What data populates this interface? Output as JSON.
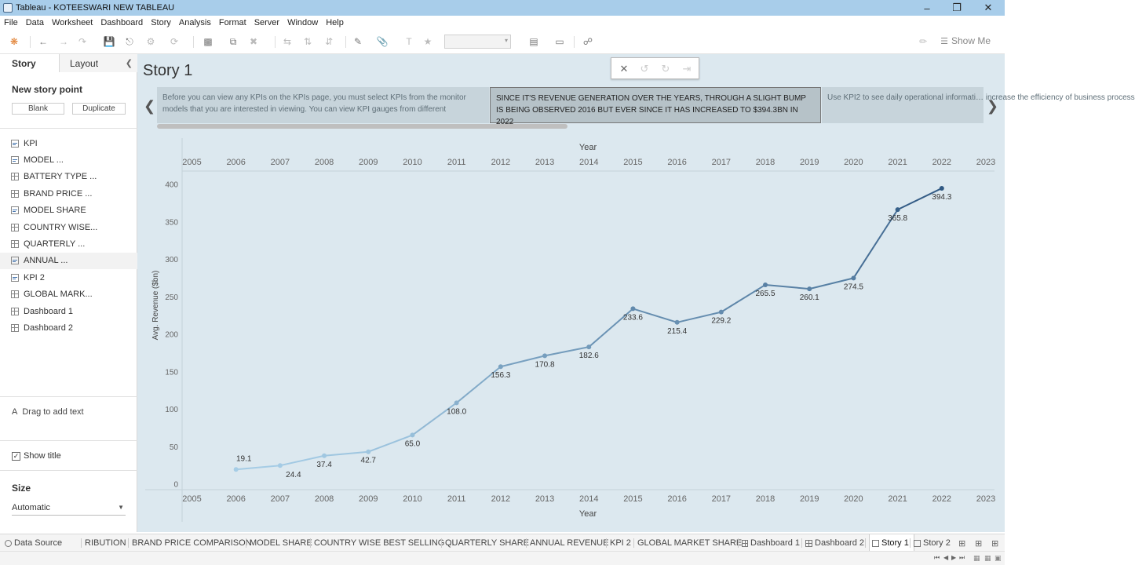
{
  "window": {
    "title": "Tableau - KOTEESWARI NEW TABLEAU"
  },
  "menu": [
    "File",
    "Data",
    "Worksheet",
    "Dashboard",
    "Story",
    "Analysis",
    "Format",
    "Server",
    "Window",
    "Help"
  ],
  "toolbar": {
    "show_me_label": "Show Me"
  },
  "left_pane": {
    "tabs": {
      "story": "Story",
      "layout": "Layout"
    },
    "new_story_point_title": "New story point",
    "blank_label": "Blank",
    "duplicate_label": "Duplicate",
    "sheets": [
      {
        "label": "KPI",
        "type": "worksheet"
      },
      {
        "label": "MODEL ...",
        "type": "worksheet"
      },
      {
        "label": "BATTERY TYPE ...",
        "type": "dashboard"
      },
      {
        "label": "BRAND PRICE ...",
        "type": "dashboard"
      },
      {
        "label": "MODEL SHARE",
        "type": "worksheet"
      },
      {
        "label": "COUNTRY WISE...",
        "type": "dashboard"
      },
      {
        "label": "QUARTERLY ...",
        "type": "dashboard"
      },
      {
        "label": "ANNUAL ...",
        "type": "worksheet"
      },
      {
        "label": "KPI 2",
        "type": "worksheet"
      },
      {
        "label": "GLOBAL MARK...",
        "type": "dashboard"
      },
      {
        "label": "Dashboard 1",
        "type": "dashboard"
      },
      {
        "label": "Dashboard 2",
        "type": "dashboard"
      }
    ],
    "drag_text_label": "Drag to add text",
    "show_title_label": "Show title",
    "size_title": "Size",
    "size_value": "Automatic"
  },
  "story": {
    "title": "Story 1",
    "points": [
      "Before you can view any KPIs on the KPIs page, you must select KPIs from the monitor models that you are interested in viewing. You can view KPI gauges from different",
      "SINCE IT'S REVENUE GENERATION OVER THE YEARS, THROUGH A SLIGHT BUMP IS BEING OBSERVED 2016 BUT EVER SINCE IT HAS INCREASED TO $394.3BN IN 2022",
      "Use KPI2 to see daily operational informati… increase the efficiency of business process"
    ]
  },
  "chart_data": {
    "type": "line",
    "xlabel": "Year",
    "ylabel": "Avg. Revenue ($bn)",
    "x_ticks": [
      "2005",
      "2006",
      "2007",
      "2008",
      "2009",
      "2010",
      "2011",
      "2012",
      "2013",
      "2014",
      "2015",
      "2016",
      "2017",
      "2018",
      "2019",
      "2020",
      "2021",
      "2022",
      "2023"
    ],
    "y_ticks": [
      0,
      50,
      100,
      150,
      200,
      250,
      300,
      350,
      400
    ],
    "x_range": [
      2005,
      2023
    ],
    "ylim": [
      0,
      400
    ],
    "x": [
      2006,
      2007,
      2008,
      2009,
      2010,
      2011,
      2012,
      2013,
      2014,
      2015,
      2016,
      2017,
      2018,
      2019,
      2020,
      2021,
      2022
    ],
    "values": [
      19.1,
      24.4,
      37.4,
      42.7,
      65.0,
      108.0,
      156.3,
      170.8,
      182.6,
      233.6,
      215.4,
      229.2,
      265.5,
      260.1,
      274.5,
      365.8,
      394.3
    ],
    "labels": [
      "19.1",
      "24.4",
      "37.4",
      "42.7",
      "65.0",
      "108.0",
      "156.3",
      "170.8",
      "182.6",
      "233.6",
      "215.4",
      "229.2",
      "265.5",
      "260.1",
      "274.5",
      "365.8",
      "394.3"
    ],
    "color_low": "#a6cde6",
    "color_high": "#2f5882",
    "grid": false
  },
  "bottom_tabs": [
    {
      "label": "Data Source",
      "type": "datasource"
    },
    {
      "label": "RIBUTION",
      "type": "sheet"
    },
    {
      "label": "BRAND PRICE COMPARISON",
      "type": "sheet"
    },
    {
      "label": "MODEL SHARE",
      "type": "sheet"
    },
    {
      "label": "COUNTRY WISE BEST SELLING ...",
      "type": "sheet"
    },
    {
      "label": "QUARTERLY SHARE",
      "type": "sheet"
    },
    {
      "label": "ANNUAL REVENUE",
      "type": "sheet"
    },
    {
      "label": "KPI 2",
      "type": "sheet"
    },
    {
      "label": "GLOBAL MARKET SHARE",
      "type": "sheet"
    },
    {
      "label": "Dashboard 1",
      "type": "dashboard"
    },
    {
      "label": "Dashboard 2",
      "type": "dashboard"
    },
    {
      "label": "Story 1",
      "type": "story",
      "active": true
    },
    {
      "label": "Story 2",
      "type": "story"
    }
  ]
}
